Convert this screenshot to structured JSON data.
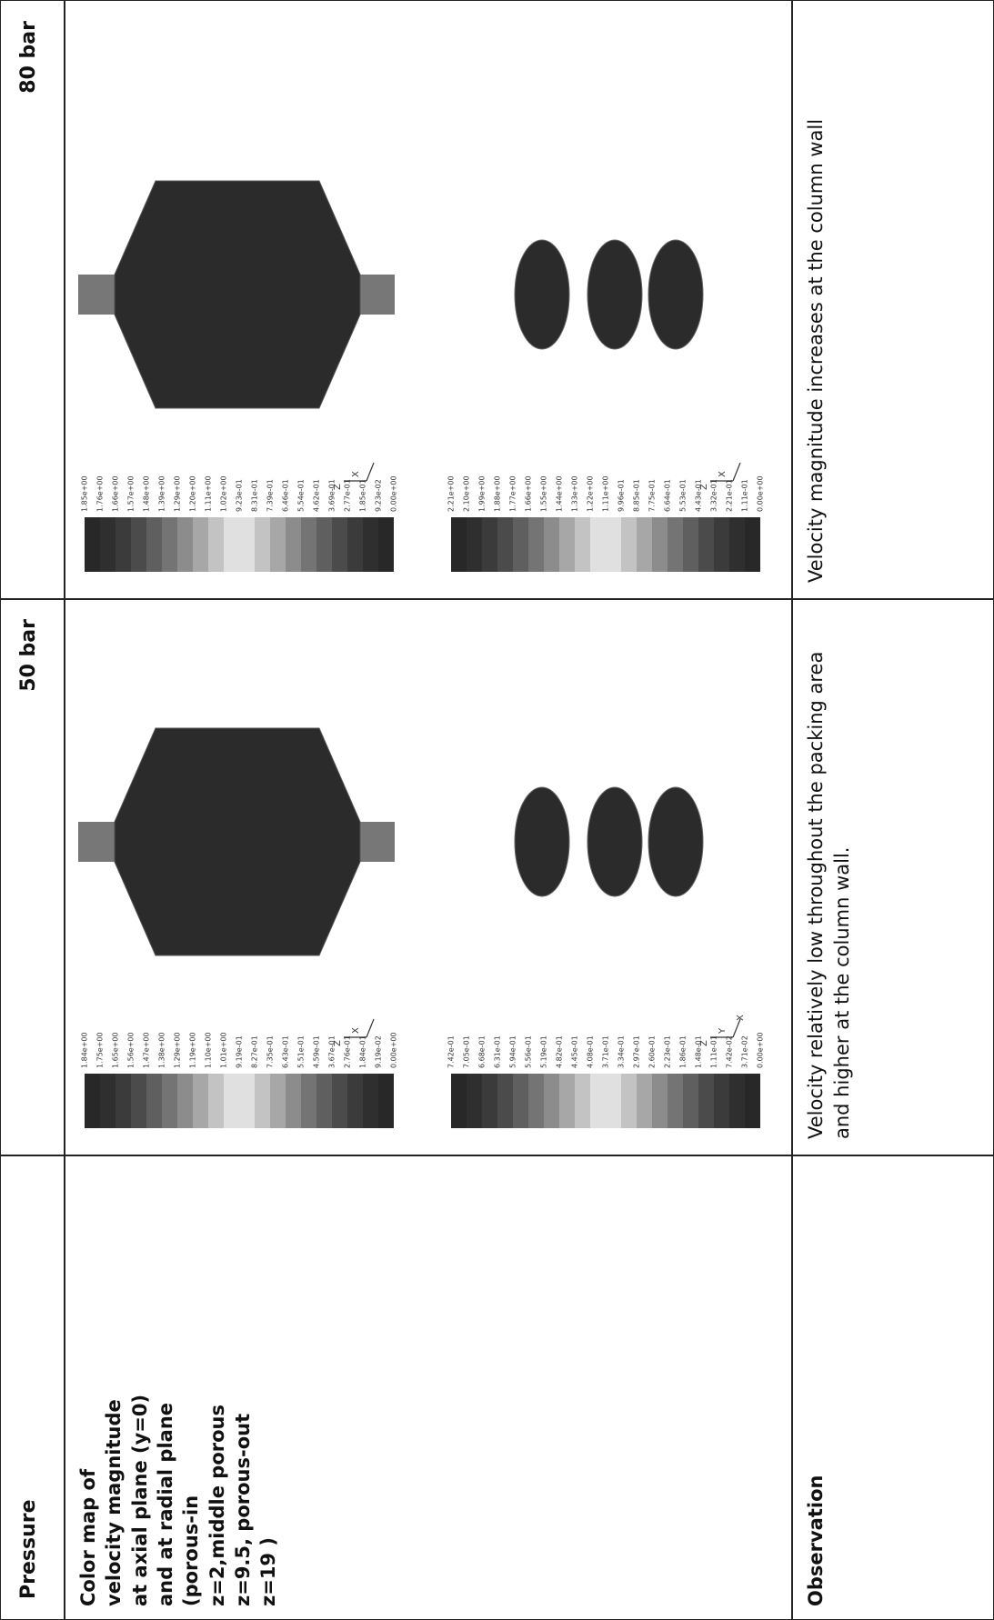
{
  "table": {
    "header": [
      "Pressure",
      "50 bar",
      "80 bar"
    ],
    "rows": [
      {
        "label": "Color map of velocity magnitude at axial plane (y=0) and at radial plane (porous-in z=2,middle porous z=9.5, porous-out z=19 )",
        "cells": [
          {
            "axial_colorbar": [
              "1.84e+00",
              "1.75e+00",
              "1.65e+00",
              "1.56e+00",
              "1.47e+00",
              "1.38e+00",
              "1.29e+00",
              "1.19e+00",
              "1.10e+00",
              "1.01e+00",
              "9.19e-01",
              "8.27e-01",
              "7.35e-01",
              "6.43e-01",
              "5.51e-01",
              "4.59e-01",
              "3.67e-01",
              "2.76e-01",
              "1.84e-01",
              "9.19e-02",
              "0.00e+00"
            ],
            "axial_axes": [
              "Z",
              "X"
            ],
            "radial_colorbar": [
              "7.42e-01",
              "7.05e-01",
              "6.68e-01",
              "6.31e-01",
              "5.94e-01",
              "5.56e-01",
              "5.19e-01",
              "4.82e-01",
              "4.45e-01",
              "4.08e-01",
              "3.71e-01",
              "3.34e-01",
              "2.97e-01",
              "2.60e-01",
              "2.23e-01",
              "1.86e-01",
              "1.48e-01",
              "1.11e-01",
              "7.42e-02",
              "3.71e-02",
              "0.00e+00"
            ],
            "radial_axes": [
              "Z",
              "Y",
              "X"
            ]
          },
          {
            "axial_colorbar": [
              "1.85e+00",
              "1.76e+00",
              "1.66e+00",
              "1.57e+00",
              "1.48e+00",
              "1.39e+00",
              "1.29e+00",
              "1.20e+00",
              "1.11e+00",
              "1.02e+00",
              "9.23e-01",
              "8.31e-01",
              "7.39e-01",
              "6.46e-01",
              "5.54e-01",
              "4.62e-01",
              "3.69e-01",
              "2.77e-01",
              "1.85e-01",
              "9.23e-02",
              "0.00e+00"
            ],
            "axial_axes": [
              "Z",
              "X"
            ],
            "radial_colorbar": [
              "2.21e+00",
              "2.10e+00",
              "1.99e+00",
              "1.88e+00",
              "1.77e+00",
              "1.66e+00",
              "1.55e+00",
              "1.44e+00",
              "1.33e+00",
              "1.22e+00",
              "1.11e+00",
              "9.96e-01",
              "8.85e-01",
              "7.75e-01",
              "6.64e-01",
              "5.53e-01",
              "4.43e-01",
              "3.32e-01",
              "2.21e-01",
              "1.11e-01",
              "0.00e+00"
            ],
            "radial_axes": [
              "Z",
              "X"
            ]
          }
        ]
      },
      {
        "label": "Observation",
        "cells": [
          "Velocity relatively low throughout the packing area and higher at the column wall.",
          "Velocity magnitude increases at the column wall"
        ]
      }
    ]
  }
}
